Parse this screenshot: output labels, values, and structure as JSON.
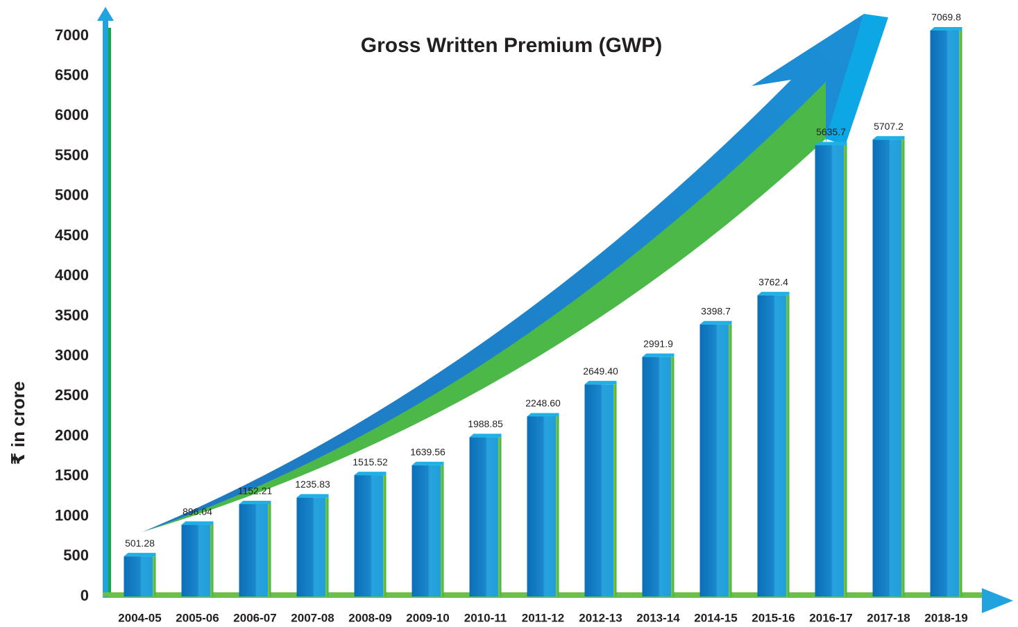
{
  "chart_data": {
    "type": "bar",
    "title": "Gross Written Premium (GWP)",
    "y_label": "₹ in crore",
    "categories": [
      "2004-05",
      "2005-06",
      "2006-07",
      "2007-08",
      "2008-09",
      "2009-10",
      "2010-11",
      "2011-12",
      "2012-13",
      "2013-14",
      "2014-15",
      "2015-16",
      "2016-17",
      "2017-18",
      "2018-19"
    ],
    "values": [
      501.28,
      896.04,
      1152.21,
      1235.83,
      1515.52,
      1639.56,
      1988.85,
      2248.6,
      2649.4,
      2991.9,
      3398.7,
      3762.4,
      5635.7,
      5707.2,
      7069.8
    ],
    "value_labels": [
      "501.28",
      "896.04",
      "1152.21",
      "1235.83",
      "1515.52",
      "1639.56",
      "1988.85",
      "2248.60",
      "2649.40",
      "2991.9",
      "3398.7",
      "3762.4",
      "5635.7",
      "5707.2",
      "7069.8"
    ],
    "color": "#1a7cc4",
    "ylim": [
      0,
      7000
    ],
    "yticks": [
      0,
      500,
      1000,
      1500,
      2000,
      2500,
      3000,
      3500,
      4000,
      4500,
      5000,
      5500,
      6000,
      6500,
      7000
    ],
    "grid": false
  }
}
